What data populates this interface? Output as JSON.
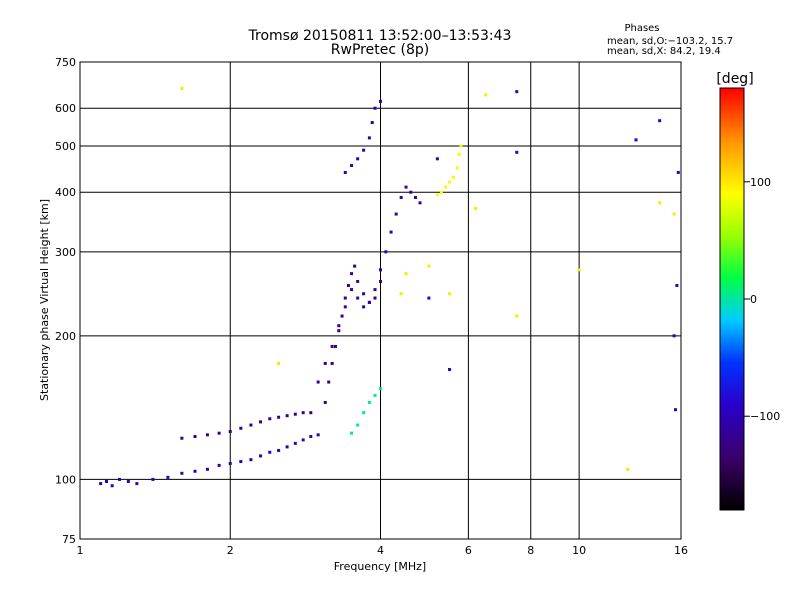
{
  "chart_data": {
    "type": "scatter",
    "title": "Tromsø 20150811 13:52:00–13:53:43",
    "subtitle": "RwPretec (8p)",
    "xlabel": "Frequency [MHz]",
    "ylabel": "Stationary phase Virtual Height [km]",
    "x_scale": "log",
    "y_scale": "log",
    "xlim": [
      1,
      16
    ],
    "ylim": [
      75,
      750
    ],
    "x_ticks": [
      "1",
      "2",
      "4",
      "6",
      "8",
      "10",
      "16"
    ],
    "y_ticks": [
      "75",
      "100",
      "200",
      "300",
      "400",
      "500",
      "600",
      "750"
    ],
    "grid": true,
    "phase_stats": {
      "heading": "Phases",
      "line_o": "mean, sd,O:−103.2, 15.7",
      "line_x": "mean, sd,X:  84.2, 19.4"
    },
    "colorbar": {
      "label": "[deg]",
      "ticks": [
        "100",
        "0",
        "−100"
      ],
      "range": [
        -180,
        180
      ]
    },
    "clusters": [
      {
        "phase": -105,
        "points": [
          [
            1.1,
            98
          ],
          [
            1.13,
            99
          ],
          [
            1.16,
            97
          ],
          [
            1.2,
            100
          ],
          [
            1.25,
            99
          ],
          [
            1.3,
            98
          ],
          [
            1.4,
            100
          ],
          [
            1.5,
            101
          ],
          [
            1.6,
            103
          ],
          [
            1.7,
            104
          ],
          [
            1.8,
            105
          ],
          [
            1.9,
            107
          ],
          [
            2.0,
            108
          ],
          [
            2.1,
            109
          ],
          [
            2.2,
            110
          ],
          [
            2.3,
            112
          ],
          [
            2.4,
            114
          ],
          [
            2.5,
            115
          ],
          [
            2.6,
            117
          ],
          [
            2.7,
            119
          ],
          [
            2.8,
            121
          ],
          [
            2.9,
            123
          ],
          [
            3.0,
            124
          ]
        ]
      },
      {
        "phase": -120,
        "points": [
          [
            1.6,
            122
          ],
          [
            1.7,
            123
          ],
          [
            1.8,
            124
          ],
          [
            1.9,
            125
          ],
          [
            2.0,
            126
          ],
          [
            2.1,
            128
          ],
          [
            2.2,
            130
          ],
          [
            2.3,
            132
          ],
          [
            2.4,
            134
          ],
          [
            2.5,
            135
          ],
          [
            2.6,
            136
          ],
          [
            2.7,
            137
          ],
          [
            2.8,
            138
          ],
          [
            2.9,
            138
          ]
        ]
      },
      {
        "phase": -125,
        "points": [
          [
            3.1,
            145
          ],
          [
            3.15,
            160
          ],
          [
            3.2,
            175
          ],
          [
            3.25,
            190
          ],
          [
            3.3,
            205
          ],
          [
            3.35,
            220
          ],
          [
            3.4,
            240
          ],
          [
            3.45,
            255
          ],
          [
            3.5,
            270
          ],
          [
            3.55,
            280
          ],
          [
            3.6,
            260
          ],
          [
            3.7,
            245
          ],
          [
            3.8,
            235
          ],
          [
            3.9,
            240
          ],
          [
            4.0,
            260
          ]
        ]
      },
      {
        "phase": -110,
        "points": [
          [
            3.0,
            160
          ],
          [
            3.1,
            175
          ],
          [
            3.2,
            190
          ],
          [
            3.3,
            210
          ],
          [
            3.4,
            230
          ],
          [
            3.5,
            250
          ],
          [
            3.6,
            240
          ],
          [
            3.7,
            230
          ],
          [
            3.8,
            235
          ],
          [
            3.9,
            250
          ],
          [
            4.0,
            275
          ],
          [
            4.1,
            300
          ],
          [
            4.2,
            330
          ],
          [
            4.3,
            360
          ],
          [
            4.4,
            390
          ],
          [
            4.5,
            410
          ],
          [
            4.6,
            400
          ],
          [
            4.7,
            390
          ],
          [
            4.8,
            380
          ]
        ]
      },
      {
        "phase": -105,
        "points": [
          [
            3.4,
            440
          ],
          [
            3.5,
            455
          ],
          [
            3.6,
            470
          ],
          [
            3.7,
            490
          ],
          [
            3.8,
            520
          ],
          [
            3.85,
            560
          ],
          [
            3.9,
            600
          ],
          [
            4.0,
            620
          ]
        ]
      },
      {
        "phase": 5,
        "points": [
          [
            3.5,
            125
          ],
          [
            3.6,
            130
          ],
          [
            3.7,
            138
          ],
          [
            3.8,
            145
          ],
          [
            3.9,
            150
          ],
          [
            4.0,
            155
          ]
        ]
      },
      {
        "phase": 85,
        "points": [
          [
            5.2,
            395
          ],
          [
            5.3,
            400
          ],
          [
            5.4,
            410
          ],
          [
            5.5,
            420
          ],
          [
            5.6,
            430
          ],
          [
            5.7,
            450
          ],
          [
            5.75,
            480
          ],
          [
            5.8,
            500
          ]
        ]
      },
      {
        "phase": 100,
        "points": [
          [
            1.6,
            660
          ],
          [
            2.5,
            175
          ],
          [
            4.4,
            245
          ],
          [
            4.5,
            270
          ],
          [
            5.0,
            280
          ],
          [
            5.5,
            245
          ],
          [
            6.2,
            370
          ],
          [
            6.5,
            640
          ],
          [
            7.5,
            220
          ],
          [
            10.0,
            275
          ],
          [
            12.5,
            105
          ],
          [
            14.5,
            380
          ],
          [
            15.5,
            360
          ]
        ]
      },
      {
        "phase": -95,
        "points": [
          [
            5.2,
            470
          ],
          [
            5.0,
            240
          ],
          [
            5.5,
            170
          ],
          [
            7.5,
            650
          ],
          [
            7.5,
            485
          ],
          [
            13.0,
            515
          ],
          [
            14.5,
            565
          ],
          [
            15.8,
            440
          ],
          [
            15.7,
            255
          ],
          [
            15.5,
            200
          ],
          [
            15.6,
            140
          ]
        ]
      }
    ]
  }
}
